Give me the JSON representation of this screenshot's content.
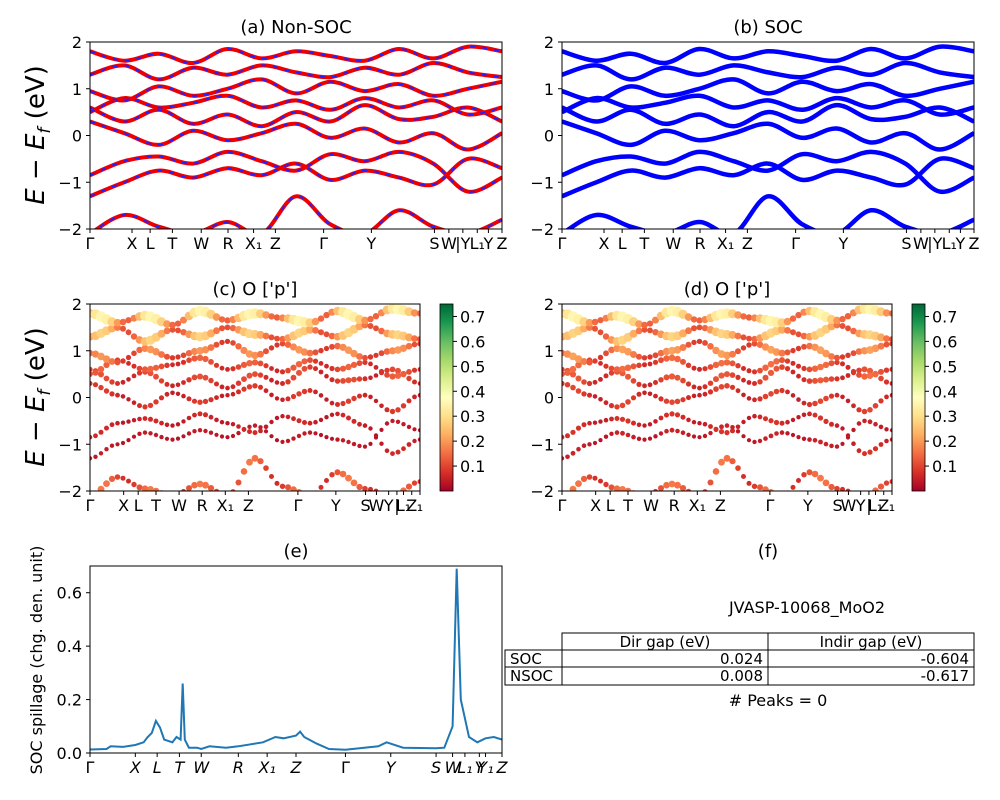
{
  "band_ticks": [
    {
      "label": "Γ",
      "t": 0.0
    },
    {
      "label": "X",
      "t": 0.102
    },
    {
      "label": "L",
      "t": 0.146
    },
    {
      "label": "T",
      "t": 0.2
    },
    {
      "label": "W",
      "t": 0.27
    },
    {
      "label": "R",
      "t": 0.335
    },
    {
      "label": "X₁",
      "t": 0.397
    },
    {
      "label": "Z",
      "t": 0.45
    },
    {
      "label": "Γ",
      "t": 0.567
    },
    {
      "label": "Y",
      "t": 0.683
    },
    {
      "label": "S",
      "t": 0.836
    },
    {
      "label": "W",
      "t": 0.871
    },
    {
      "label": "|Y",
      "t": 0.905
    },
    {
      "label": "L₁",
      "t": 0.94
    },
    {
      "label": "Y",
      "t": 0.967
    },
    {
      "label": "Z",
      "t": 1.0
    }
  ],
  "band_ticks_cd": [
    {
      "label": "Γ",
      "t": 0.0
    },
    {
      "label": "X",
      "t": 0.102
    },
    {
      "label": "L",
      "t": 0.146
    },
    {
      "label": "T",
      "t": 0.2
    },
    {
      "label": "W",
      "t": 0.27
    },
    {
      "label": "R",
      "t": 0.34
    },
    {
      "label": "X₁",
      "t": 0.41
    },
    {
      "label": "Z",
      "t": 0.48
    },
    {
      "label": "Γ",
      "t": 0.63
    },
    {
      "label": "Y",
      "t": 0.745
    },
    {
      "label": "S",
      "t": 0.835
    },
    {
      "label": "W",
      "t": 0.868
    },
    {
      "label": "Y",
      "t": 0.905
    },
    {
      "label": "|",
      "t": 0.93
    },
    {
      "label": "L₁",
      "t": 0.95
    },
    {
      "label": "Z",
      "t": 0.975
    },
    {
      "label": "₁",
      "t": 1.0
    }
  ],
  "colorbar_ticks": [
    "0.1",
    "0.2",
    "0.3",
    "0.4",
    "0.5",
    "0.6",
    "0.7"
  ],
  "colorbar_range": [
    0.0,
    0.75
  ],
  "colors": {
    "non_soc": "#ee0000",
    "non_soc_dash": "#2222ff",
    "soc": "#0000ff",
    "spillage": "#1f77b4"
  },
  "chart_data": [
    {
      "id": "a",
      "type": "line",
      "title": "(a) Non-SOC",
      "ylabel": "E − E_f (eV)",
      "ylim": [
        -2,
        2
      ],
      "yticks": [
        "−2",
        "−1",
        "0",
        "1",
        "2"
      ],
      "series": [
        {
          "values": [
            -1.3,
            -1.0,
            -0.75,
            -0.9,
            -0.7,
            -0.85,
            -0.6,
            -0.95,
            -0.75,
            -0.9,
            -1.05,
            -0.5,
            -0.7
          ]
        },
        {
          "values": [
            -0.85,
            -0.55,
            -0.45,
            -0.6,
            -0.35,
            -0.55,
            -0.75,
            -0.4,
            -0.55,
            -0.35,
            -0.6,
            -1.2,
            -0.9
          ]
        },
        {
          "values": [
            0.3,
            0.05,
            -0.2,
            0.1,
            -0.1,
            0.05,
            0.25,
            -0.05,
            0.15,
            -0.15,
            0.05,
            -0.3,
            0.05
          ]
        },
        {
          "values": [
            0.6,
            0.3,
            0.55,
            0.25,
            0.45,
            0.2,
            0.5,
            0.3,
            0.65,
            0.35,
            0.4,
            0.6,
            0.3
          ]
        },
        {
          "values": [
            0.5,
            0.8,
            0.6,
            0.7,
            0.85,
            0.6,
            0.75,
            0.55,
            0.8,
            0.6,
            0.75,
            0.45,
            0.6
          ]
        },
        {
          "values": [
            0.95,
            0.75,
            1.05,
            0.85,
            1.0,
            1.2,
            0.9,
            1.15,
            0.95,
            1.1,
            0.85,
            1.0,
            1.15
          ]
        },
        {
          "values": [
            1.3,
            1.5,
            1.2,
            1.45,
            1.3,
            1.5,
            1.35,
            1.25,
            1.45,
            1.3,
            1.55,
            1.35,
            1.25
          ]
        },
        {
          "values": [
            1.8,
            1.6,
            1.75,
            1.55,
            1.85,
            1.65,
            1.8,
            1.7,
            1.6,
            1.85,
            1.65,
            1.9,
            1.8
          ]
        },
        {
          "values": [
            -2.1,
            -1.7,
            -1.95,
            -2.1,
            -1.85,
            -2.1,
            -1.3,
            -1.9,
            -2.1,
            -1.6,
            -1.95,
            -2.1,
            -1.8
          ]
        }
      ]
    },
    {
      "id": "b",
      "type": "line",
      "title": "(b) SOC",
      "ylim": [
        -2,
        2
      ],
      "yticks": [
        "−2",
        "−1",
        "0",
        "1",
        "2"
      ],
      "series": [
        {
          "values": [
            -1.3,
            -1.0,
            -0.75,
            -0.9,
            -0.7,
            -0.85,
            -0.6,
            -0.95,
            -0.75,
            -0.9,
            -1.05,
            -0.5,
            -0.7
          ]
        },
        {
          "values": [
            -0.85,
            -0.55,
            -0.45,
            -0.6,
            -0.35,
            -0.55,
            -0.75,
            -0.4,
            -0.55,
            -0.35,
            -0.6,
            -1.2,
            -0.9
          ]
        },
        {
          "values": [
            0.3,
            0.05,
            -0.2,
            0.1,
            -0.1,
            0.05,
            0.25,
            -0.05,
            0.15,
            -0.15,
            0.05,
            -0.3,
            0.05
          ]
        },
        {
          "values": [
            0.6,
            0.3,
            0.55,
            0.25,
            0.45,
            0.2,
            0.5,
            0.3,
            0.65,
            0.35,
            0.4,
            0.6,
            0.3
          ]
        },
        {
          "values": [
            0.5,
            0.8,
            0.6,
            0.7,
            0.85,
            0.6,
            0.75,
            0.55,
            0.8,
            0.6,
            0.75,
            0.45,
            0.6
          ]
        },
        {
          "values": [
            0.95,
            0.75,
            1.05,
            0.85,
            1.0,
            1.2,
            0.9,
            1.15,
            0.95,
            1.1,
            0.85,
            1.0,
            1.15
          ]
        },
        {
          "values": [
            1.3,
            1.5,
            1.2,
            1.45,
            1.3,
            1.5,
            1.35,
            1.25,
            1.45,
            1.3,
            1.55,
            1.35,
            1.25
          ]
        },
        {
          "values": [
            1.8,
            1.6,
            1.75,
            1.55,
            1.85,
            1.65,
            1.8,
            1.7,
            1.6,
            1.85,
            1.65,
            1.9,
            1.8
          ]
        },
        {
          "values": [
            -2.1,
            -1.7,
            -1.95,
            -2.1,
            -1.85,
            -2.1,
            -1.3,
            -1.9,
            -2.1,
            -1.6,
            -1.95,
            -2.1,
            -1.8
          ]
        }
      ]
    },
    {
      "id": "c",
      "type": "scatter",
      "title": "(c)  O ['p']",
      "ylabel": "E − E_f (eV)",
      "ylim": [
        -2,
        2
      ],
      "yticks": [
        "−2",
        "−1",
        "0",
        "1",
        "2"
      ],
      "colorbar_ticks": [
        "0.1",
        "0.2",
        "0.3",
        "0.4",
        "0.5",
        "0.6",
        "0.7"
      ],
      "series": [
        {
          "values": [
            -1.3,
            -1.0,
            -0.75,
            -0.9,
            -0.7,
            -0.85,
            -0.6,
            -0.95,
            -0.75,
            -0.9,
            -1.05,
            -0.5,
            -0.7
          ],
          "weight": 0.02
        },
        {
          "values": [
            -0.85,
            -0.55,
            -0.45,
            -0.6,
            -0.35,
            -0.55,
            -0.75,
            -0.4,
            -0.55,
            -0.35,
            -0.6,
            -1.2,
            -0.9
          ],
          "weight": 0.04
        },
        {
          "values": [
            0.3,
            0.05,
            -0.2,
            0.1,
            -0.1,
            0.05,
            0.25,
            -0.05,
            0.15,
            -0.15,
            0.05,
            -0.3,
            0.05
          ],
          "weight": 0.06
        },
        {
          "values": [
            0.6,
            0.3,
            0.55,
            0.25,
            0.45,
            0.2,
            0.5,
            0.3,
            0.65,
            0.35,
            0.4,
            0.6,
            0.3
          ],
          "weight": 0.08
        },
        {
          "values": [
            0.5,
            0.8,
            0.6,
            0.7,
            0.85,
            0.6,
            0.75,
            0.55,
            0.8,
            0.6,
            0.75,
            0.45,
            0.6
          ],
          "weight": 0.1
        },
        {
          "values": [
            0.95,
            0.75,
            1.05,
            0.85,
            1.0,
            1.2,
            0.9,
            1.15,
            0.95,
            1.1,
            0.85,
            1.0,
            1.15
          ],
          "weight": 0.15
        },
        {
          "values": [
            1.3,
            1.5,
            1.2,
            1.45,
            1.3,
            1.5,
            1.35,
            1.25,
            1.45,
            1.3,
            1.55,
            1.35,
            1.25
          ],
          "weight": 0.22
        },
        {
          "values": [
            1.8,
            1.6,
            1.75,
            1.55,
            1.85,
            1.65,
            1.8,
            1.7,
            1.6,
            1.85,
            1.65,
            1.9,
            1.8
          ],
          "weight": 0.28
        },
        {
          "values": [
            -2.1,
            -1.7,
            -1.95,
            -2.1,
            -1.85,
            -2.1,
            -1.3,
            -1.9,
            -2.1,
            -1.6,
            -1.95,
            -2.1,
            -1.8
          ],
          "weight": 0.12
        }
      ]
    },
    {
      "id": "d",
      "type": "scatter",
      "title": "(d) O ['p']",
      "ylim": [
        -2,
        2
      ],
      "yticks": [
        "−2",
        "−1",
        "0",
        "1",
        "2"
      ],
      "colorbar_ticks": [
        "0.1",
        "0.2",
        "0.3",
        "0.4",
        "0.5",
        "0.6",
        "0.7"
      ],
      "series": [
        {
          "values": [
            -1.3,
            -1.0,
            -0.75,
            -0.9,
            -0.7,
            -0.85,
            -0.6,
            -0.95,
            -0.75,
            -0.9,
            -1.05,
            -0.5,
            -0.7
          ],
          "weight": 0.03
        },
        {
          "values": [
            -0.85,
            -0.55,
            -0.45,
            -0.6,
            -0.35,
            -0.55,
            -0.75,
            -0.4,
            -0.55,
            -0.35,
            -0.6,
            -1.2,
            -0.9
          ],
          "weight": 0.05
        },
        {
          "values": [
            0.3,
            0.05,
            -0.2,
            0.1,
            -0.1,
            0.05,
            0.25,
            -0.05,
            0.15,
            -0.15,
            0.05,
            -0.3,
            0.05
          ],
          "weight": 0.07
        },
        {
          "values": [
            0.6,
            0.3,
            0.55,
            0.25,
            0.45,
            0.2,
            0.5,
            0.3,
            0.65,
            0.35,
            0.4,
            0.6,
            0.3
          ],
          "weight": 0.09
        },
        {
          "values": [
            0.5,
            0.8,
            0.6,
            0.7,
            0.85,
            0.6,
            0.75,
            0.55,
            0.8,
            0.6,
            0.75,
            0.45,
            0.6
          ],
          "weight": 0.11
        },
        {
          "values": [
            0.95,
            0.75,
            1.05,
            0.85,
            1.0,
            1.2,
            0.9,
            1.15,
            0.95,
            1.1,
            0.85,
            1.0,
            1.15
          ],
          "weight": 0.16
        },
        {
          "values": [
            1.3,
            1.5,
            1.2,
            1.45,
            1.3,
            1.5,
            1.35,
            1.25,
            1.45,
            1.3,
            1.55,
            1.35,
            1.25
          ],
          "weight": 0.22
        },
        {
          "values": [
            1.8,
            1.6,
            1.75,
            1.55,
            1.85,
            1.65,
            1.8,
            1.7,
            1.6,
            1.85,
            1.65,
            1.9,
            1.8
          ],
          "weight": 0.28
        },
        {
          "values": [
            -2.1,
            -1.7,
            -1.95,
            -2.1,
            -1.85,
            -2.1,
            -1.3,
            -1.9,
            -2.1,
            -1.6,
            -1.95,
            -2.1,
            -1.8
          ],
          "weight": 0.12
        }
      ]
    },
    {
      "id": "e",
      "type": "line",
      "title": "(e)",
      "ylabel": "SOC spillage (chg. den. unit)",
      "ylim": [
        0,
        0.7
      ],
      "yticks": [
        "0.0",
        "0.2",
        "0.4",
        "0.6"
      ],
      "x_tick_labels": [
        {
          "label": "Γ",
          "t": 0.0
        },
        {
          "label": "X",
          "t": 0.11
        },
        {
          "label": "L",
          "t": 0.163
        },
        {
          "label": "T",
          "t": 0.217
        },
        {
          "label": "W",
          "t": 0.27
        },
        {
          "label": "R",
          "t": 0.36
        },
        {
          "label": "X₁",
          "t": 0.43
        },
        {
          "label": "Z",
          "t": 0.5
        },
        {
          "label": "Γ",
          "t": 0.62
        },
        {
          "label": "Y",
          "t": 0.73
        },
        {
          "label": "S",
          "t": 0.84
        },
        {
          "label": "W",
          "t": 0.88
        },
        {
          "label": "L₁",
          "t": 0.91
        },
        {
          "label": "Y",
          "t": 0.945
        },
        {
          "label": "Y₁",
          "t": 0.96
        },
        {
          "label": "Z",
          "t": 1.0
        }
      ],
      "x": [
        0.0,
        0.04,
        0.05,
        0.08,
        0.11,
        0.13,
        0.14,
        0.15,
        0.16,
        0.17,
        0.18,
        0.2,
        0.21,
        0.22,
        0.225,
        0.23,
        0.24,
        0.26,
        0.27,
        0.29,
        0.33,
        0.36,
        0.42,
        0.45,
        0.47,
        0.5,
        0.51,
        0.52,
        0.55,
        0.58,
        0.62,
        0.7,
        0.72,
        0.76,
        0.84,
        0.86,
        0.88,
        0.89,
        0.9,
        0.92,
        0.94,
        0.96,
        0.98,
        1.0
      ],
      "values": [
        0.013,
        0.015,
        0.025,
        0.023,
        0.03,
        0.04,
        0.06,
        0.075,
        0.12,
        0.095,
        0.05,
        0.04,
        0.06,
        0.05,
        0.26,
        0.05,
        0.02,
        0.02,
        0.015,
        0.025,
        0.02,
        0.025,
        0.04,
        0.06,
        0.055,
        0.065,
        0.08,
        0.06,
        0.035,
        0.015,
        0.012,
        0.025,
        0.04,
        0.02,
        0.018,
        0.02,
        0.1,
        0.69,
        0.2,
        0.06,
        0.04,
        0.055,
        0.06,
        0.05
      ]
    }
  ],
  "info": {
    "title": "(f)",
    "material": "JVASP-10068_MoO2",
    "table": {
      "columns": [
        "Dir gap (eV)",
        "Indir gap (eV)"
      ],
      "rows": [
        {
          "label": "SOC",
          "dir": "0.024",
          "indir": "-0.604"
        },
        {
          "label": "NSOC",
          "dir": "0.008",
          "indir": "-0.617"
        }
      ]
    },
    "peaks": "# Peaks = 0"
  }
}
